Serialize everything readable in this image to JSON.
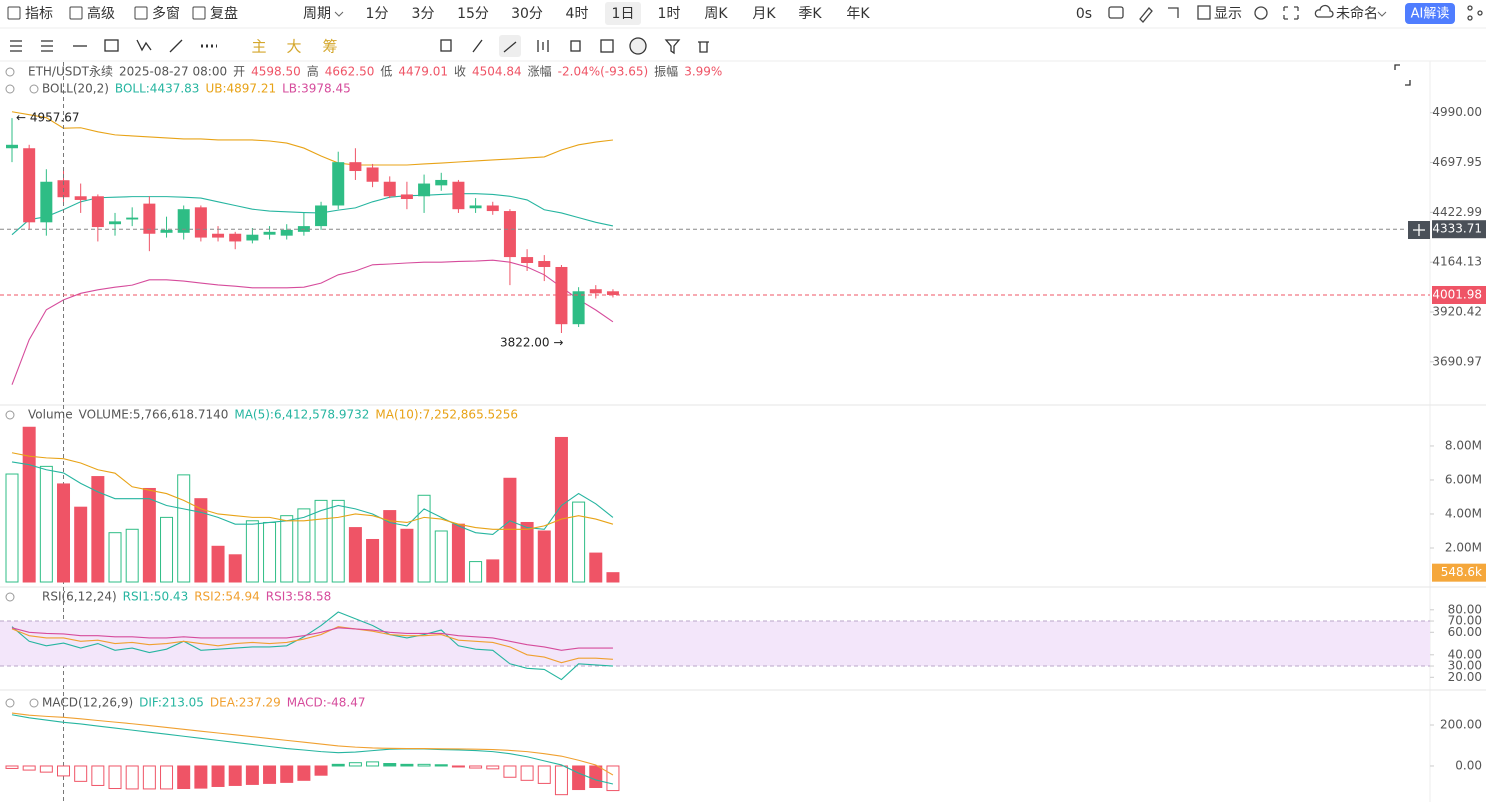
{
  "toolbar": {
    "tools": [
      "指标",
      "高级",
      "多窗",
      "复盘"
    ],
    "period_menu": "周期",
    "periods": [
      "1分",
      "3分",
      "15分",
      "30分",
      "4时",
      "1日",
      "1时",
      "周K",
      "月K",
      "季K",
      "年K"
    ],
    "active_period": 5,
    "timer": "0s",
    "display": "显示",
    "layout": "未命名",
    "ai": "AI解读"
  },
  "drawing_bar": [
    "主",
    "大",
    "筹"
  ],
  "chart_data": [
    {
      "type": "candlestick",
      "title": "ETH/USDT永续",
      "subtitle": "2025-08-27 08:00",
      "legend_value_color": "#ef5466",
      "ohlc_legend": [
        {
          "label": "开",
          "value": "4598.50"
        },
        {
          "label": "高",
          "value": "4662.50"
        },
        {
          "label": "低",
          "value": "4479.01"
        },
        {
          "label": "收",
          "value": "4504.84"
        },
        {
          "label": "涨幅",
          "value": "-2.04%(-93.65)"
        },
        {
          "label": "振幅",
          "value": "3.99%"
        }
      ],
      "indicator": "BOLL(20,2)",
      "log_scale": true,
      "ylim": [
        3503,
        5306
      ],
      "yticks": [
        {
          "value": 4990,
          "label": "4990.00"
        },
        {
          "value": 4697.95,
          "label": "4697.95"
        },
        {
          "value": 4422.99,
          "label": "4422.99"
        },
        {
          "value": 4164.13,
          "label": "4164.13"
        },
        {
          "value": 3920.42,
          "label": "3920.42"
        },
        {
          "value": 3690.97,
          "label": "3690.97"
        }
      ],
      "up_color": "#2ebd85",
      "down_color": "#ef5466",
      "open": [
        4780,
        4780,
        4370,
        4598.5,
        4510,
        4510,
        4360,
        4385,
        4470,
        4315,
        4315,
        4450,
        4310,
        4310,
        4275,
        4305,
        4300,
        4320,
        4350,
        4460,
        4700,
        4670,
        4590,
        4520,
        4510,
        4570,
        4590,
        4445,
        4460,
        4430,
        4190,
        4170,
        4140,
        3863,
        4030,
        4020
      ],
      "high": [
        4957.67,
        4800,
        4660,
        4662.5,
        4580,
        4520,
        4420,
        4450,
        4510,
        4400,
        4460,
        4460,
        4350,
        4320,
        4340,
        4350,
        4360,
        4420,
        4480,
        4760,
        4780,
        4690,
        4620,
        4590,
        4630,
        4640,
        4600,
        4500,
        4480,
        4440,
        4230,
        4200,
        4150,
        4040,
        4050,
        4030
      ],
      "low": [
        4700,
        4330,
        4300,
        4479.01,
        4420,
        4270,
        4300,
        4350,
        4220,
        4290,
        4280,
        4270,
        4270,
        4230,
        4260,
        4280,
        4280,
        4300,
        4330,
        4440,
        4600,
        4560,
        4500,
        4440,
        4420,
        4540,
        4420,
        4420,
        4410,
        4050,
        4120,
        4070,
        3822,
        3850,
        3985,
        3990
      ],
      "close": [
        4800,
        4370,
        4590,
        4504.84,
        4490,
        4345,
        4375,
        4395,
        4310,
        4330,
        4440,
        4290,
        4290,
        4270,
        4305,
        4320,
        4330,
        4350,
        4460,
        4700,
        4650,
        4590,
        4510,
        4495,
        4580,
        4600,
        4440,
        4460,
        4430,
        4190,
        4160,
        4140,
        3863,
        4020,
        4010,
        4001.98
      ],
      "high_label": "← 4957.67",
      "low_label": "3822.00 →",
      "crosshair": {
        "index": 3,
        "value": 4333.71,
        "label": "4333.71"
      },
      "last_label": {
        "value": 4001.98,
        "label": "4001.98"
      },
      "series": [
        {
          "name": "BOLL:4437.83",
          "color": "#26b5a0",
          "values": [
            4305,
            4384,
            4400,
            4437.83,
            4480,
            4502,
            4505,
            4508,
            4508,
            4508,
            4505,
            4500,
            4480,
            4460,
            4440,
            4430,
            4426,
            4422,
            4420,
            4435,
            4447,
            4480,
            4505,
            4513,
            4515,
            4520,
            4524,
            4524,
            4520,
            4510,
            4490,
            4437,
            4420,
            4395,
            4370,
            4351
          ]
        },
        {
          "name": "UB:4897.21",
          "color": "#e8a317",
          "values": [
            4996,
            4978,
            4960,
            4897.21,
            4900,
            4876,
            4858,
            4852,
            4846,
            4840,
            4834,
            4834,
            4828,
            4828,
            4828,
            4822,
            4810,
            4781,
            4735,
            4695,
            4684,
            4684,
            4684,
            4684,
            4690,
            4695,
            4701,
            4707,
            4713,
            4718,
            4724,
            4730,
            4770,
            4800,
            4816,
            4828
          ]
        },
        {
          "name": "LB:3978.45",
          "color": "#d64c9c",
          "values": [
            3590,
            3791,
            3931,
            3978.45,
            4010,
            4027,
            4040,
            4050,
            4076,
            4076,
            4070,
            4060,
            4051,
            4045,
            4037,
            4037,
            4037,
            4040,
            4060,
            4101,
            4120,
            4151,
            4155,
            4160,
            4164,
            4164,
            4168,
            4170,
            4174,
            4164,
            4140,
            4101,
            4040,
            3980,
            3930,
            3874
          ]
        }
      ]
    },
    {
      "type": "bar",
      "title": "Volume",
      "ylim": [
        0,
        10350000
      ],
      "yticks": [
        {
          "value": 2000000,
          "label": "2.00M"
        },
        {
          "value": 4000000,
          "label": "4.00M"
        },
        {
          "value": 6000000,
          "label": "6.00M"
        },
        {
          "value": 8000000,
          "label": "8.00M"
        }
      ],
      "name": "VOLUME:5,766,618.7140",
      "values": [
        6350000,
        9100000,
        6800000,
        5766618.714,
        4400000,
        6200000,
        2900000,
        3100000,
        5500000,
        3800000,
        6300000,
        4900000,
        2100000,
        1600000,
        3600000,
        3500000,
        3900000,
        4300000,
        4800000,
        4800000,
        3200000,
        2500000,
        4200000,
        3100000,
        5100000,
        3000000,
        3400000,
        1200000,
        1300000,
        6100000,
        3500000,
        3000000,
        8500000,
        4700000,
        1700000,
        548600
      ],
      "last_label": {
        "value": 548600,
        "label": "548.6k"
      },
      "series": [
        {
          "name": "MA(5):6,412,578.9732",
          "color": "#26b5a0",
          "values": [
            7060000,
            6900000,
            6600000,
            6412578.9732,
            5800000,
            5300000,
            4900000,
            4900000,
            4900000,
            4500000,
            4300000,
            4100000,
            3800000,
            3400000,
            3400000,
            3500000,
            3600000,
            3800000,
            4200000,
            4500000,
            4300000,
            4000000,
            3500000,
            3300000,
            4300000,
            3800000,
            3300000,
            2900000,
            2800000,
            3600000,
            3200000,
            3100000,
            4500000,
            5200000,
            4600000,
            3800000
          ]
        },
        {
          "name": "MA(10):7,252,865.5256",
          "color": "#e8a317",
          "values": [
            7600000,
            7400000,
            7300000,
            7252865.5256,
            7000000,
            6600000,
            6400000,
            5600000,
            5400000,
            5200000,
            4800000,
            4300000,
            4000000,
            3900000,
            3800000,
            3800000,
            3600000,
            3600000,
            3700000,
            3800000,
            4000000,
            3900000,
            3600000,
            3500000,
            3800000,
            3700000,
            3400000,
            3200000,
            3100000,
            3100000,
            3100000,
            3300000,
            3700000,
            3900000,
            3700000,
            3400000
          ]
        }
      ]
    },
    {
      "type": "line",
      "title": "RSI(6,12,24)",
      "ylim": [
        8.7,
        97.6
      ],
      "yticks": [
        {
          "value": 20,
          "label": "20.00"
        },
        {
          "value": 30,
          "label": "30.00"
        },
        {
          "value": 40,
          "label": "40.00"
        },
        {
          "value": 60,
          "label": "60.00"
        },
        {
          "value": 70,
          "label": "70.00"
        },
        {
          "value": 80,
          "label": "80.00"
        }
      ],
      "band": [
        30,
        70
      ],
      "band_color": "#f3e6fa",
      "series": [
        {
          "name": "RSI1:50.43",
          "color": "#26b5a0",
          "values": [
            65,
            52,
            48,
            50.43,
            46,
            50,
            44,
            46,
            42,
            45,
            52,
            44,
            45,
            46,
            47,
            47,
            48,
            56,
            66,
            78,
            72,
            66,
            58,
            55,
            58,
            62,
            48,
            45,
            44,
            32,
            28,
            27,
            18,
            32,
            31,
            30
          ]
        },
        {
          "name": "RSI2:54.94",
          "color": "#f0a030",
          "values": [
            63,
            57,
            55,
            54.94,
            52,
            53,
            50,
            51,
            49,
            50,
            52,
            50,
            48,
            50,
            51,
            50,
            51,
            54,
            58,
            65,
            63,
            61,
            58,
            57,
            57,
            58,
            53,
            52,
            51,
            47,
            40,
            38,
            33,
            37,
            37,
            36
          ]
        },
        {
          "name": "RSI3:58.58",
          "color": "#d64c9c",
          "values": [
            64,
            60,
            59,
            58.58,
            57,
            57,
            56,
            56,
            55,
            55,
            56,
            55,
            55,
            55,
            55,
            55,
            55,
            57,
            60,
            64,
            63,
            62,
            60,
            59,
            59,
            59,
            57,
            56,
            55,
            52,
            49,
            47,
            44,
            46,
            46,
            46
          ]
        }
      ]
    },
    {
      "type": "macd",
      "title": "MACD(12,26,9)",
      "ylim": [
        -166,
        361
      ],
      "yticks": [
        {
          "value": 0,
          "label": "0.00"
        },
        {
          "value": 200,
          "label": "200.00"
        }
      ],
      "up_color": "#2ebd85",
      "down_color": "#ef5466",
      "series": [
        {
          "name": "DIF:213.05",
          "color": "#26b5a0",
          "values": [
            250,
            235,
            224,
            213.05,
            205,
            195,
            185,
            175,
            165,
            155,
            145,
            135,
            125,
            115,
            105,
            95,
            85,
            78,
            70,
            65,
            68,
            75,
            82,
            84,
            83,
            80,
            78,
            75,
            70,
            60,
            45,
            25,
            5,
            -35,
            -68,
            -88
          ]
        },
        {
          "name": "DEA:237.29",
          "color": "#f0a030",
          "values": [
            258,
            248,
            242,
            237.29,
            230,
            222,
            214,
            206,
            197,
            188,
            179,
            170,
            161,
            152,
            143,
            134,
            125,
            116,
            107,
            98,
            92,
            88,
            86,
            85,
            85,
            84,
            83,
            82,
            80,
            76,
            70,
            60,
            48,
            28,
            5,
            -44
          ]
        }
      ],
      "histogram": {
        "name": "MACD:-48.47",
        "color": "#d64c9c",
        "values": [
          -12,
          -20,
          -30,
          -48.47,
          -75,
          -95,
          -110,
          -112,
          -112,
          -112,
          -110,
          -108,
          -100,
          -95,
          -90,
          -85,
          -80,
          -70,
          -45,
          8,
          16,
          20,
          12,
          8,
          8,
          6,
          -4,
          -10,
          -14,
          -55,
          -70,
          -85,
          -140,
          -115,
          -105,
          -120
        ]
      }
    }
  ]
}
